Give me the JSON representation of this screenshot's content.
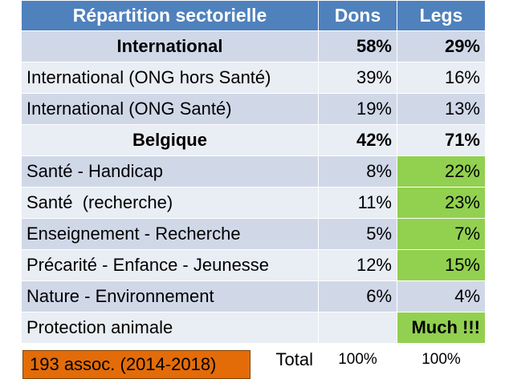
{
  "header": {
    "col1": "Répartition sectorielle",
    "col2": "Dons",
    "col3": "Legs"
  },
  "rows": [
    {
      "label": "International",
      "dons": "58%",
      "legs": "29%"
    },
    {
      "label": "International (ONG hors Santé)",
      "dons": "39%",
      "legs": "16%"
    },
    {
      "label": "International (ONG Santé)",
      "dons": "19%",
      "legs": "13%"
    },
    {
      "label": "Belgique",
      "dons": "42%",
      "legs": "71%"
    },
    {
      "label": "Santé - Handicap",
      "dons": "8%",
      "legs": "22%"
    },
    {
      "label": "Santé  (recherche)",
      "dons": "11%",
      "legs": "23%"
    },
    {
      "label": "Enseignement - Recherche",
      "dons": "5%",
      "legs": "7%"
    },
    {
      "label": "Précarité - Enfance - Jeunesse",
      "dons": "12%",
      "legs": "15%"
    },
    {
      "label": "Nature - Environnement",
      "dons": "6%",
      "legs": "4%"
    },
    {
      "label": "Protection animale",
      "dons": "",
      "legs": "Much !!!"
    }
  ],
  "total": {
    "label": "Total",
    "dons": "100%",
    "legs": "100%"
  },
  "badge": "193 assoc. (2014-2018)",
  "colors": {
    "header": "#4f81bd",
    "band": "#d0d8e8",
    "plain": "#e9edf4",
    "highlight": "#92d050",
    "badge": "#e36c09"
  }
}
